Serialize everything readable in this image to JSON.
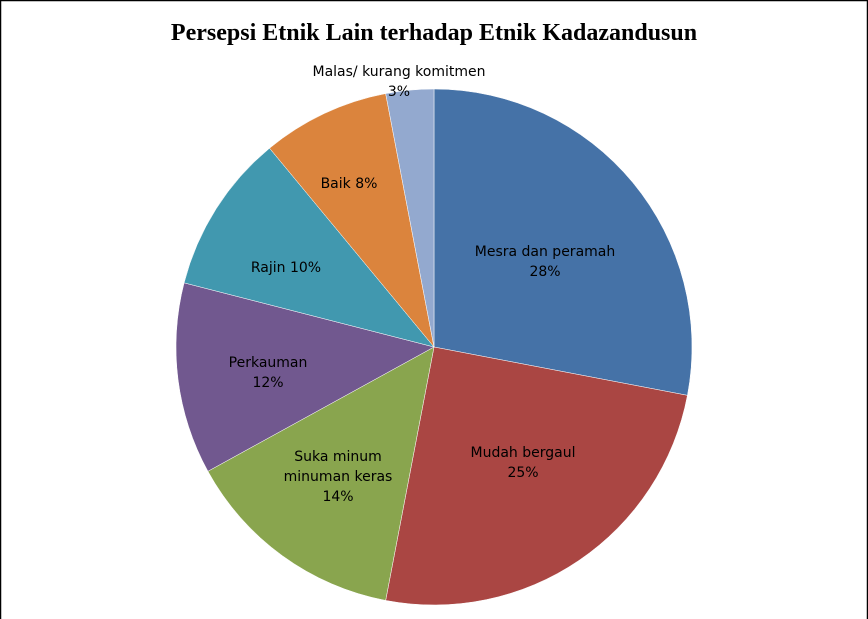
{
  "chart_data": {
    "type": "pie",
    "title": "Persepsi Etnik Lain terhadap Etnik Kadazandusun",
    "categories": [
      "Mesra dan peramah",
      "Mudah bergaul",
      "Suka minum minuman keras",
      "Perkauman",
      "Rajin",
      "Baik",
      "Malas/ kurang komitmen"
    ],
    "values": [
      28,
      25,
      14,
      12,
      10,
      8,
      3
    ],
    "value_labels": [
      "28%",
      "25%",
      "14%",
      "12%",
      "10%",
      "8%",
      "3%"
    ],
    "colors": [
      "#4572a7",
      "#aa4643",
      "#89a54e",
      "#71588f",
      "#4198af",
      "#db843d",
      "#93a9cf"
    ]
  }
}
